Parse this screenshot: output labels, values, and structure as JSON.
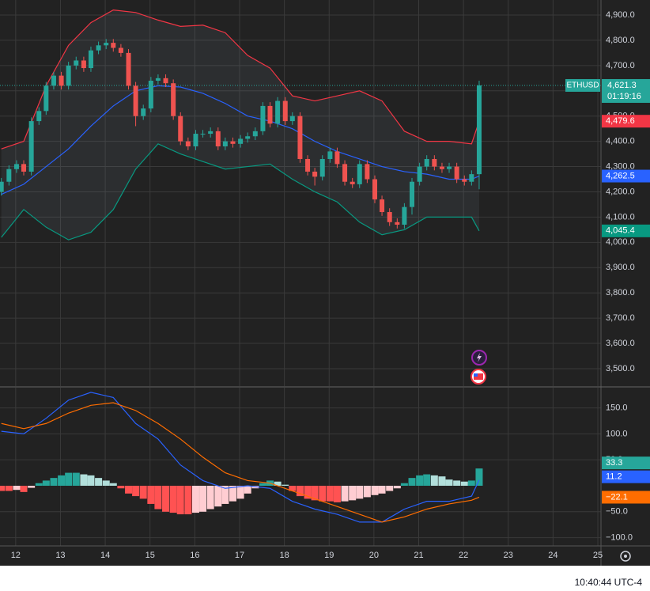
{
  "chart_data": {
    "type": "candlestick",
    "symbol": "ETHUSD",
    "last_price": {
      "value": 4621.3,
      "label": "4,621.3",
      "countdown": "01:19:16"
    },
    "xlim": [
      11.65,
      25.07
    ],
    "xticks": [
      12,
      13,
      14,
      15,
      16,
      17,
      18,
      19,
      20,
      21,
      22,
      23,
      24,
      25
    ],
    "ylim": [
      3431,
      4959.5
    ],
    "yticks": [
      {
        "value": 4900,
        "label": "4,900.0"
      },
      {
        "value": 4800,
        "label": "4,800.0"
      },
      {
        "value": 4700,
        "label": "4,700.0"
      },
      {
        "value": 4600,
        "label": "4,600.0"
      },
      {
        "value": 4500,
        "label": "4,500.0"
      },
      {
        "value": 4400,
        "label": "4,400.0"
      },
      {
        "value": 4300,
        "label": "4,300.0"
      },
      {
        "value": 4200,
        "label": "4,200.0"
      },
      {
        "value": 4100,
        "label": "4,100.0"
      },
      {
        "value": 4000,
        "label": "4,000.0"
      },
      {
        "value": 3900,
        "label": "3,900.0"
      },
      {
        "value": 3800,
        "label": "3,800.0"
      },
      {
        "value": 3700,
        "label": "3,700.0"
      },
      {
        "value": 3600,
        "label": "3,600.0"
      },
      {
        "value": 3500,
        "label": "3,500.0"
      }
    ],
    "grid": true,
    "up_color": "#26a69a",
    "down_color": "#ef5350",
    "x": [
      11.68,
      11.85,
      12.02,
      12.18,
      12.35,
      12.52,
      12.68,
      12.85,
      13.02,
      13.18,
      13.35,
      13.52,
      13.68,
      13.85,
      14.02,
      14.18,
      14.35,
      14.52,
      14.68,
      14.85,
      15.02,
      15.18,
      15.35,
      15.52,
      15.68,
      15.85,
      16.02,
      16.18,
      16.35,
      16.52,
      16.68,
      16.85,
      17.02,
      17.18,
      17.35,
      17.52,
      17.68,
      17.85,
      18.02,
      18.18,
      18.35,
      18.52,
      18.68,
      18.85,
      19.02,
      19.18,
      19.35,
      19.52,
      19.68,
      19.85,
      20.02,
      20.18,
      20.35,
      20.52,
      20.68,
      20.85,
      21.02,
      21.18,
      21.35,
      21.52,
      21.68,
      21.85,
      22.02,
      22.18,
      22.35
    ],
    "open": [
      4200,
      4240,
      4290,
      4310,
      4280,
      4480,
      4520,
      4620,
      4660,
      4620,
      4700,
      4720,
      4690,
      4760,
      4780,
      4790,
      4770,
      4750,
      4620,
      4500,
      4530,
      4640,
      4650,
      4630,
      4500,
      4400,
      4380,
      4430,
      4430,
      4440,
      4380,
      4400,
      4390,
      4410,
      4420,
      4440,
      4540,
      4470,
      4560,
      4480,
      4500,
      4330,
      4280,
      4260,
      4330,
      4360,
      4310,
      4240,
      4230,
      4310,
      4250,
      4170,
      4120,
      4080,
      4070,
      4140,
      4240,
      4300,
      4330,
      4300,
      4290,
      4300,
      4250,
      4240,
      4270
    ],
    "high": [
      4255,
      4305,
      4325,
      4325,
      4495,
      4535,
      4635,
      4675,
      4675,
      4715,
      4735,
      4735,
      4775,
      4795,
      4805,
      4805,
      4785,
      4765,
      4635,
      4545,
      4655,
      4665,
      4665,
      4645,
      4515,
      4415,
      4445,
      4445,
      4455,
      4455,
      4415,
      4415,
      4425,
      4435,
      4455,
      4555,
      4555,
      4575,
      4575,
      4515,
      4515,
      4345,
      4295,
      4345,
      4375,
      4375,
      4325,
      4255,
      4325,
      4325,
      4265,
      4185,
      4135,
      4095,
      4155,
      4255,
      4315,
      4345,
      4345,
      4315,
      4315,
      4315,
      4265,
      4285,
      4640
    ],
    "low": [
      4185,
      4225,
      4275,
      4265,
      4265,
      4465,
      4505,
      4605,
      4605,
      4605,
      4685,
      4675,
      4675,
      4745,
      4765,
      4755,
      4735,
      4605,
      4460,
      4485,
      4515,
      4625,
      4615,
      4485,
      4385,
      4365,
      4365,
      4415,
      4415,
      4365,
      4365,
      4375,
      4375,
      4395,
      4405,
      4425,
      4455,
      4455,
      4465,
      4465,
      4315,
      4265,
      4225,
      4245,
      4315,
      4295,
      4225,
      4215,
      4215,
      4235,
      4155,
      4105,
      4065,
      4055,
      4055,
      4110,
      4225,
      4285,
      4285,
      4275,
      4275,
      4235,
      4225,
      4225,
      4210
    ],
    "close": [
      4240,
      4290,
      4310,
      4280,
      4480,
      4520,
      4620,
      4660,
      4620,
      4700,
      4720,
      4690,
      4760,
      4780,
      4790,
      4770,
      4750,
      4620,
      4500,
      4530,
      4640,
      4650,
      4630,
      4500,
      4400,
      4380,
      4430,
      4430,
      4440,
      4380,
      4400,
      4390,
      4410,
      4420,
      4440,
      4540,
      4470,
      4560,
      4480,
      4500,
      4330,
      4280,
      4260,
      4330,
      4360,
      4310,
      4240,
      4230,
      4310,
      4250,
      4170,
      4120,
      4080,
      4070,
      4140,
      4240,
      4300,
      4330,
      4300,
      4290,
      4300,
      4250,
      4240,
      4270,
      4621.3
    ],
    "bands": {
      "x": [
        11.68,
        12.18,
        12.68,
        13.18,
        13.68,
        14.18,
        14.68,
        15.18,
        15.68,
        16.18,
        16.68,
        17.18,
        17.68,
        18.18,
        18.68,
        19.18,
        19.68,
        20.18,
        20.68,
        21.18,
        21.68,
        22.18,
        22.35
      ],
      "upper": {
        "color": "#f23645",
        "values": [
          4370,
          4400,
          4620,
          4780,
          4870,
          4920,
          4910,
          4880,
          4855,
          4860,
          4830,
          4740,
          4690,
          4580,
          4560,
          4580,
          4600,
          4560,
          4440,
          4400,
          4400,
          4390,
          4479.6
        ],
        "last_label": "4,479.6"
      },
      "middle": {
        "color": "#2962ff",
        "values": [
          4190,
          4230,
          4300,
          4370,
          4460,
          4540,
          4600,
          4620,
          4615,
          4590,
          4550,
          4500,
          4480,
          4450,
          4400,
          4360,
          4330,
          4300,
          4280,
          4270,
          4250,
          4250,
          4262.5
        ],
        "last_label": "4,262.5"
      },
      "lower": {
        "color": "#089981",
        "values": [
          4020,
          4130,
          4060,
          4010,
          4040,
          4130,
          4290,
          4390,
          4350,
          4320,
          4290,
          4300,
          4310,
          4250,
          4200,
          4160,
          4080,
          4030,
          4050,
          4100,
          4100,
          4100,
          4045.4
        ],
        "last_label": "4,045.4"
      }
    },
    "macd": {
      "ylim": [
        -115.9,
        189
      ],
      "yticks": [
        {
          "value": 150,
          "label": "150.0"
        },
        {
          "value": 100,
          "label": "100.0"
        },
        {
          "value": 50,
          "label": "50.0"
        },
        {
          "value": -50,
          "label": "−50.0"
        },
        {
          "value": -100,
          "label": "−100.0"
        }
      ],
      "histogram": {
        "up_color": "#26a69a",
        "up_fade": "#b2dfdb",
        "down_color": "#ff5252",
        "down_fade": "#ffcdd2",
        "values": [
          -10,
          -10,
          -8,
          -12,
          -4,
          5,
          10,
          15,
          20,
          25,
          25,
          22,
          20,
          15,
          10,
          5,
          -5,
          -15,
          -20,
          -25,
          -35,
          -45,
          -50,
          -52,
          -55,
          -55,
          -52,
          -50,
          -45,
          -40,
          -35,
          -30,
          -25,
          -15,
          -5,
          5,
          10,
          8,
          2,
          -10,
          -20,
          -25,
          -28,
          -30,
          -30,
          -32,
          -30,
          -28,
          -25,
          -22,
          -18,
          -15,
          -10,
          -5,
          5,
          15,
          20,
          22,
          20,
          18,
          12,
          10,
          8,
          10,
          33.3
        ],
        "last_label": "33.3"
      },
      "line": {
        "color": "#2962ff",
        "values": [
          105,
          100,
          130,
          165,
          180,
          170,
          120,
          90,
          40,
          10,
          -5,
          0,
          -5,
          -30,
          -45,
          -55,
          -70,
          -70,
          -45,
          -30,
          -30,
          -20,
          11.2
        ],
        "last_label": "11.2"
      },
      "signal": {
        "color": "#ff6d00",
        "values": [
          120,
          110,
          120,
          140,
          155,
          160,
          145,
          120,
          90,
          55,
          25,
          10,
          5,
          -10,
          -25,
          -40,
          -55,
          -70,
          -60,
          -45,
          -35,
          -28,
          -22.1
        ],
        "last_label": "−22.1"
      }
    },
    "clock": "10:40:44 UTC-4"
  }
}
